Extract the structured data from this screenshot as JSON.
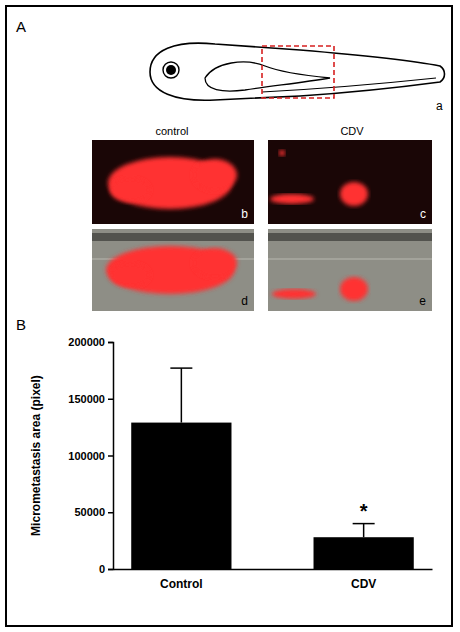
{
  "chart_data": {
    "type": "bar",
    "categories": [
      "Control",
      "CDV"
    ],
    "values": [
      129000,
      28000
    ],
    "errors": [
      48000,
      12000
    ],
    "color": "#000000",
    "ylabel": "Micrometastasis area (pixel)",
    "ylim": [
      0,
      200000
    ],
    "yticks": [
      0,
      50000,
      100000,
      150000,
      200000
    ],
    "annotations": [
      {
        "text": "*",
        "category": 1
      }
    ]
  },
  "figure": {
    "panel_labels": [
      "A",
      "B"
    ],
    "image_labels": [
      "a",
      "b",
      "c",
      "d",
      "e"
    ],
    "image_titles": [
      "control",
      "CDV"
    ]
  }
}
